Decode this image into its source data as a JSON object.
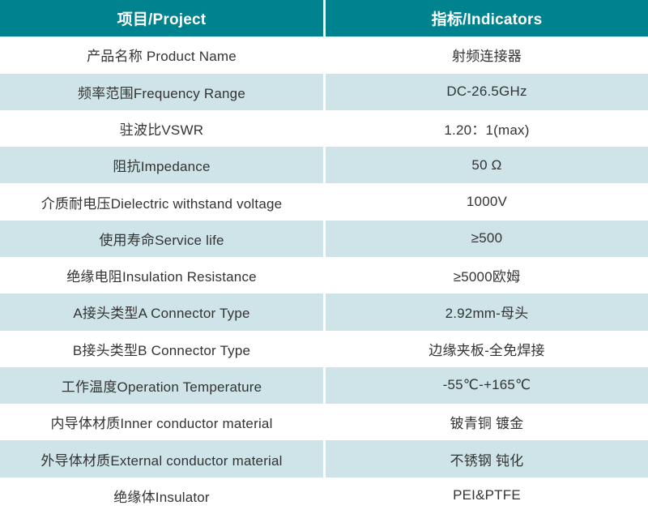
{
  "table": {
    "title_semantics": "rf-connector-specification-table",
    "colors": {
      "header_background": "#00838F",
      "header_text": "#ffffff",
      "stripe_background": "#CEE4E9",
      "body_text": "#333333",
      "divider": "#ffffff"
    },
    "header": {
      "project": "项目/Project",
      "indicators": "指标/Indicators"
    },
    "rows": [
      {
        "project": "产品名称 Product Name",
        "indicator": "射频连接器"
      },
      {
        "project": "频率范围Frequency Range",
        "indicator": "DC-26.5GHz"
      },
      {
        "project": "驻波比VSWR",
        "indicator": "1.20：1(max)"
      },
      {
        "project": "阻抗Impedance",
        "indicator": "50 Ω"
      },
      {
        "project": "介质耐电压Dielectric withstand voltage",
        "indicator": "1000V"
      },
      {
        "project": "使用寿命Service life",
        "indicator": "≥500"
      },
      {
        "project": "绝缘电阻Insulation Resistance",
        "indicator": "≥5000欧姆"
      },
      {
        "project": "A接头类型A Connector Type",
        "indicator": "2.92mm-母头"
      },
      {
        "project": "B接头类型B Connector Type",
        "indicator": "边缘夹板-全免焊接"
      },
      {
        "project": "工作温度Operation Temperature",
        "indicator": "-55℃-+165℃"
      },
      {
        "project": "内导体材质Inner conductor material",
        "indicator": "铍青铜 镀金"
      },
      {
        "project": "外导体材质External conductor material",
        "indicator": "不锈钢 钝化"
      },
      {
        "project": "绝缘体Insulator",
        "indicator": "PEI&PTFE"
      }
    ]
  }
}
